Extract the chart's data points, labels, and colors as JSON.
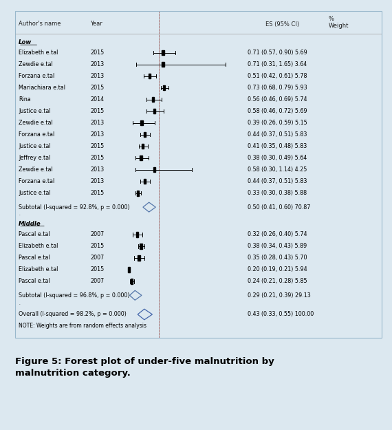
{
  "header_author": "Author's name",
  "header_year": "Year",
  "header_es": "ES (95% CI)",
  "header_pct": "%",
  "header_weight": "Weight",
  "low_label": "Low",
  "middle_label": "Middle",
  "low_studies": [
    {
      "author": "Elizabeth e.tal",
      "year": "2015",
      "es": 0.71,
      "lo": 0.57,
      "hi": 0.9,
      "label": "0.71 (0.57, 0.90) 5.69"
    },
    {
      "author": "Zewdie e.tal",
      "year": "2013",
      "es": 0.71,
      "lo": 0.31,
      "hi": 1.65,
      "label": "0.71 (0.31, 1.65) 3.64"
    },
    {
      "author": "Forzana e.tal",
      "year": "2013",
      "es": 0.51,
      "lo": 0.42,
      "hi": 0.61,
      "label": "0.51 (0.42, 0.61) 5.78"
    },
    {
      "author": "Mariachiara e.tal",
      "year": "2015",
      "es": 0.73,
      "lo": 0.68,
      "hi": 0.79,
      "label": "0.73 (0.68, 0.79) 5.93"
    },
    {
      "author": "Rina",
      "year": "2014",
      "es": 0.56,
      "lo": 0.46,
      "hi": 0.69,
      "label": "0.56 (0.46, 0.69) 5.74"
    },
    {
      "author": "Justice e.tal",
      "year": "2015",
      "es": 0.58,
      "lo": 0.46,
      "hi": 0.72,
      "label": "0.58 (0.46, 0.72) 5.69"
    },
    {
      "author": "Zewdie e.tal",
      "year": "2013",
      "es": 0.39,
      "lo": 0.26,
      "hi": 0.59,
      "label": "0.39 (0.26, 0.59) 5.15"
    },
    {
      "author": "Forzana e.tal",
      "year": "2013",
      "es": 0.44,
      "lo": 0.37,
      "hi": 0.51,
      "label": "0.44 (0.37, 0.51) 5.83"
    },
    {
      "author": "Justice e.tal",
      "year": "2015",
      "es": 0.41,
      "lo": 0.35,
      "hi": 0.48,
      "label": "0.41 (0.35, 0.48) 5.83"
    },
    {
      "author": "Jeffrey e.tal",
      "year": "2015",
      "es": 0.38,
      "lo": 0.3,
      "hi": 0.49,
      "label": "0.38 (0.30, 0.49) 5.64"
    },
    {
      "author": "Zewdie e.tal",
      "year": "2013",
      "es": 0.58,
      "lo": 0.3,
      "hi": 1.14,
      "label": "0.58 (0.30, 1.14) 4.25"
    },
    {
      "author": "Forzana e.tal",
      "year": "2013",
      "es": 0.44,
      "lo": 0.37,
      "hi": 0.51,
      "label": "0.44 (0.37, 0.51) 5.83"
    },
    {
      "author": "Justice e.tal",
      "year": "2015",
      "es": 0.33,
      "lo": 0.3,
      "hi": 0.38,
      "label": "0.33 (0.30, 0.38) 5.88"
    }
  ],
  "low_subtotal": {
    "es": 0.5,
    "lo": 0.41,
    "hi": 0.6,
    "stat": "Subtotal (I-squared = 92.8%, p = 0.000)",
    "label": "0.50 (0.41, 0.60) 70.87"
  },
  "middle_studies": [
    {
      "author": "Pascal e.tal",
      "year": "2007",
      "es": 0.32,
      "lo": 0.26,
      "hi": 0.4,
      "label": "0.32 (0.26, 0.40) 5.74"
    },
    {
      "author": "Elizabeth e.tal",
      "year": "2015",
      "es": 0.38,
      "lo": 0.34,
      "hi": 0.43,
      "label": "0.38 (0.34, 0.43) 5.89"
    },
    {
      "author": "Pascal e.tal",
      "year": "2007",
      "es": 0.35,
      "lo": 0.28,
      "hi": 0.43,
      "label": "0.35 (0.28, 0.43) 5.70"
    },
    {
      "author": "Elizabeth e.tal",
      "year": "2015",
      "es": 0.2,
      "lo": 0.19,
      "hi": 0.21,
      "label": "0.20 (0.19, 0.21) 5.94"
    },
    {
      "author": "Pascal e.tal",
      "year": "2007",
      "es": 0.24,
      "lo": 0.21,
      "hi": 0.28,
      "label": "0.24 (0.21, 0.28) 5.85"
    }
  ],
  "middle_subtotal": {
    "es": 0.29,
    "lo": 0.21,
    "hi": 0.39,
    "stat": "Subtotal (I-squared = 96.8%, p = 0.000)",
    "label": "0.29 (0.21, 0.39) 29.13"
  },
  "overall": {
    "es": 0.43,
    "lo": 0.33,
    "hi": 0.55,
    "stat": "Overall (I-squared = 98.2%, p = 0.000)",
    "label": "0.43 (0.33, 0.55) 100.00"
  },
  "note": "NOTE: Weights are from random effects analysis",
  "caption_line1": "Figure 5: Forest plot of under-five malnutrition by",
  "caption_line2": "malnutrition category.",
  "bg_color": "#dce8f0",
  "panel_color": "#f0f4f8",
  "outer_bg": "#c8dce8",
  "xmin": 0.0,
  "xmax": 1.9,
  "dash_es": 0.65,
  "spine_es": 0.65
}
